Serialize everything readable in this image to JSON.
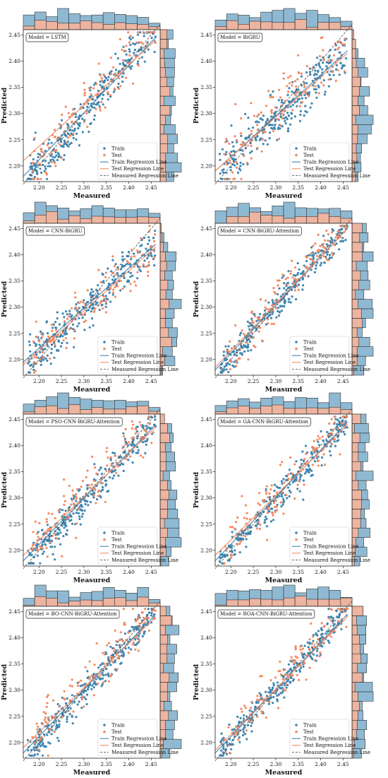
{
  "colors": {
    "train": "#3f86b0",
    "test": "#f58a63",
    "train_hist": "#8fb9d2",
    "test_hist": "#f7b49a",
    "train_line": "#3f86b0",
    "test_line": "#f58a63",
    "measured_line": "#555555"
  },
  "chart_data": [
    {
      "type": "scatter",
      "model_label": "Model = LSTM",
      "xlabel": "Measured",
      "ylabel": "Predicted",
      "xlim": [
        2.165,
        2.47
      ],
      "ylim": [
        2.17,
        2.46
      ],
      "xticks": [
        "2.20",
        "2.25",
        "2.30",
        "2.35",
        "2.40",
        "2.45"
      ],
      "yticks": [
        "2.20",
        "2.25",
        "2.30",
        "2.35",
        "2.40",
        "2.45"
      ],
      "legend": [
        "Train",
        "Test",
        "Train Regression Line",
        "Test Regression Line",
        "Measured Regression Line"
      ],
      "legend_position": "lower-right",
      "series": [
        {
          "name": "Train",
          "kind": "scatter",
          "slope": 1.0,
          "intercept": 0.0,
          "spread": 0.02,
          "seed": 11
        },
        {
          "name": "Test",
          "kind": "scatter",
          "slope": 0.98,
          "intercept": 0.05,
          "spread": 0.03,
          "seed": 12
        },
        {
          "name": "Train Regression Line",
          "kind": "line",
          "x": [
            2.165,
            2.46
          ],
          "y": [
            2.18,
            2.445
          ]
        },
        {
          "name": "Test Regression Line",
          "kind": "line",
          "x": [
            2.165,
            2.46
          ],
          "y": [
            2.21,
            2.44
          ]
        },
        {
          "name": "Measured Regression Line",
          "kind": "line",
          "x": [
            2.165,
            2.47
          ],
          "y": [
            2.165,
            2.47
          ]
        }
      ]
    },
    {
      "type": "scatter",
      "model_label": "Model = BiGRU",
      "xlabel": "Measured",
      "ylabel": "Predicted",
      "xlim": [
        2.165,
        2.47
      ],
      "ylim": [
        2.17,
        2.46
      ],
      "xticks": [
        "2.20",
        "2.25",
        "2.30",
        "2.35",
        "2.40",
        "2.45"
      ],
      "yticks": [
        "2.20",
        "2.25",
        "2.30",
        "2.35",
        "2.40",
        "2.45"
      ],
      "legend": [
        "Train",
        "Test",
        "Train Regression Line",
        "Test Regression Line",
        "Measured Regression Line"
      ],
      "legend_position": "lower-right",
      "series": [
        {
          "name": "Train",
          "kind": "scatter",
          "slope": 0.8,
          "intercept": 0.45,
          "spread": 0.022,
          "seed": 21
        },
        {
          "name": "Test",
          "kind": "scatter",
          "slope": 0.8,
          "intercept": 0.46,
          "spread": 0.028,
          "seed": 22
        },
        {
          "name": "Train Regression Line",
          "kind": "line",
          "x": [
            2.165,
            2.46
          ],
          "y": [
            2.19,
            2.42
          ]
        },
        {
          "name": "Test Regression Line",
          "kind": "line",
          "x": [
            2.165,
            2.46
          ],
          "y": [
            2.19,
            2.415
          ]
        },
        {
          "name": "Measured Regression Line",
          "kind": "line",
          "x": [
            2.165,
            2.47
          ],
          "y": [
            2.165,
            2.47
          ]
        }
      ]
    },
    {
      "type": "scatter",
      "model_label": "Model = CNN-BiGRU",
      "xlabel": "Measured",
      "ylabel": "Predicted",
      "xlim": [
        2.165,
        2.47
      ],
      "ylim": [
        2.17,
        2.46
      ],
      "xticks": [
        "2.20",
        "2.25",
        "2.30",
        "2.35",
        "2.40",
        "2.45"
      ],
      "yticks": [
        "2.20",
        "2.25",
        "2.30",
        "2.35",
        "2.40",
        "2.45"
      ],
      "legend": [
        "Train",
        "Test",
        "Train Regression Line",
        "Test Regression Line",
        "Measured Regression Line"
      ],
      "legend_position": "lower-right",
      "series": [
        {
          "name": "Train",
          "kind": "scatter",
          "slope": 0.78,
          "intercept": 0.5,
          "spread": 0.02,
          "seed": 31
        },
        {
          "name": "Test",
          "kind": "scatter",
          "slope": 0.78,
          "intercept": 0.5,
          "spread": 0.026,
          "seed": 32
        },
        {
          "name": "Train Regression Line",
          "kind": "line",
          "x": [
            2.165,
            2.46
          ],
          "y": [
            2.195,
            2.42
          ]
        },
        {
          "name": "Test Regression Line",
          "kind": "line",
          "x": [
            2.165,
            2.46
          ],
          "y": [
            2.19,
            2.415
          ]
        },
        {
          "name": "Measured Regression Line",
          "kind": "line",
          "x": [
            2.165,
            2.47
          ],
          "y": [
            2.165,
            2.47
          ]
        }
      ]
    },
    {
      "type": "scatter",
      "model_label": "Model = CNN-BiGRU-Attention",
      "xlabel": "Measured",
      "ylabel": "Predicted",
      "xlim": [
        2.165,
        2.47
      ],
      "ylim": [
        2.17,
        2.46
      ],
      "xticks": [
        "2.20",
        "2.25",
        "2.30",
        "2.35",
        "2.40",
        "2.45"
      ],
      "yticks": [
        "2.20",
        "2.25",
        "2.30",
        "2.35",
        "2.40",
        "2.45"
      ],
      "legend": [
        "Train",
        "Test",
        "Train Regression Line",
        "Test Regression Line",
        "Measured Regression Line"
      ],
      "legend_position": "lower-right",
      "series": [
        {
          "name": "Train",
          "kind": "scatter",
          "slope": 0.97,
          "intercept": 0.07,
          "spread": 0.016,
          "seed": 41
        },
        {
          "name": "Test",
          "kind": "scatter",
          "slope": 0.97,
          "intercept": 0.08,
          "spread": 0.022,
          "seed": 42
        },
        {
          "name": "Train Regression Line",
          "kind": "line",
          "x": [
            2.165,
            2.46
          ],
          "y": [
            2.18,
            2.45
          ]
        },
        {
          "name": "Test Regression Line",
          "kind": "line",
          "x": [
            2.165,
            2.46
          ],
          "y": [
            2.185,
            2.45
          ]
        },
        {
          "name": "Measured Regression Line",
          "kind": "line",
          "x": [
            2.165,
            2.47
          ],
          "y": [
            2.165,
            2.47
          ]
        }
      ]
    },
    {
      "type": "scatter",
      "model_label": "Model = PSO-CNN-BiGRU-Attention",
      "xlabel": "Measured",
      "ylabel": "Predicted",
      "xlim": [
        2.165,
        2.47
      ],
      "ylim": [
        2.17,
        2.46
      ],
      "xticks": [
        "2.20",
        "2.25",
        "2.30",
        "2.35",
        "2.40",
        "2.45"
      ],
      "yticks": [
        "2.20",
        "2.25",
        "2.30",
        "2.35",
        "2.40",
        "2.45"
      ],
      "legend": [
        "Train",
        "Test",
        "Train Regression Line",
        "Test Regression Line",
        "Measured Regression Line"
      ],
      "legend_position": "lower-right",
      "series": [
        {
          "name": "Train",
          "kind": "scatter",
          "slope": 0.95,
          "intercept": 0.11,
          "spread": 0.016,
          "seed": 51
        },
        {
          "name": "Test",
          "kind": "scatter",
          "slope": 0.9,
          "intercept": 0.24,
          "spread": 0.024,
          "seed": 52
        },
        {
          "name": "Train Regression Line",
          "kind": "line",
          "x": [
            2.165,
            2.46
          ],
          "y": [
            2.18,
            2.44
          ]
        },
        {
          "name": "Test Regression Line",
          "kind": "line",
          "x": [
            2.165,
            2.46
          ],
          "y": [
            2.19,
            2.435
          ]
        },
        {
          "name": "Measured Regression Line",
          "kind": "line",
          "x": [
            2.165,
            2.47
          ],
          "y": [
            2.165,
            2.47
          ]
        }
      ]
    },
    {
      "type": "scatter",
      "model_label": "Model = GA-CNN-BiGRU-Attention",
      "xlabel": "Measured",
      "ylabel": "Predicted",
      "xlim": [
        2.165,
        2.47
      ],
      "ylim": [
        2.17,
        2.46
      ],
      "xticks": [
        "2.20",
        "2.25",
        "2.30",
        "2.35",
        "2.40",
        "2.45"
      ],
      "yticks": [
        "2.20",
        "2.25",
        "2.30",
        "2.35",
        "2.40",
        "2.45"
      ],
      "legend": [
        "Train",
        "Test",
        "Train Regression Line",
        "Test Regression Line",
        "Measured Regression Line"
      ],
      "legend_position": "lower-right",
      "series": [
        {
          "name": "Train",
          "kind": "scatter",
          "slope": 0.96,
          "intercept": 0.09,
          "spread": 0.015,
          "seed": 61
        },
        {
          "name": "Test",
          "kind": "scatter",
          "slope": 0.92,
          "intercept": 0.19,
          "spread": 0.022,
          "seed": 62
        },
        {
          "name": "Train Regression Line",
          "kind": "line",
          "x": [
            2.165,
            2.46
          ],
          "y": [
            2.18,
            2.445
          ]
        },
        {
          "name": "Test Regression Line",
          "kind": "line",
          "x": [
            2.165,
            2.46
          ],
          "y": [
            2.19,
            2.44
          ]
        },
        {
          "name": "Measured Regression Line",
          "kind": "line",
          "x": [
            2.165,
            2.47
          ],
          "y": [
            2.165,
            2.47
          ]
        }
      ]
    },
    {
      "type": "scatter",
      "model_label": "Model = BO-CNN-BiGRU-Attention",
      "xlabel": "Measured",
      "ylabel": "Predicted",
      "xlim": [
        2.165,
        2.47
      ],
      "ylim": [
        2.17,
        2.46
      ],
      "xticks": [
        "2.20",
        "2.25",
        "2.30",
        "2.35",
        "2.40",
        "2.45"
      ],
      "yticks": [
        "2.20",
        "2.25",
        "2.30",
        "2.35",
        "2.40",
        "2.45"
      ],
      "legend": [
        "Train",
        "Test",
        "Train Regression Line",
        "Test Regression Line",
        "Measured Regression Line"
      ],
      "legend_position": "lower-right",
      "series": [
        {
          "name": "Train",
          "kind": "scatter",
          "slope": 0.96,
          "intercept": 0.09,
          "spread": 0.015,
          "seed": 71
        },
        {
          "name": "Test",
          "kind": "scatter",
          "slope": 0.9,
          "intercept": 0.24,
          "spread": 0.022,
          "seed": 72
        },
        {
          "name": "Train Regression Line",
          "kind": "line",
          "x": [
            2.165,
            2.46
          ],
          "y": [
            2.18,
            2.445
          ]
        },
        {
          "name": "Test Regression Line",
          "kind": "line",
          "x": [
            2.165,
            2.46
          ],
          "y": [
            2.19,
            2.44
          ]
        },
        {
          "name": "Measured Regression Line",
          "kind": "line",
          "x": [
            2.165,
            2.47
          ],
          "y": [
            2.165,
            2.47
          ]
        }
      ]
    },
    {
      "type": "scatter",
      "model_label": "Model = ROA-CNN-BiGRU-Attention",
      "xlabel": "Measured",
      "ylabel": "Predicted",
      "xlim": [
        2.165,
        2.47
      ],
      "ylim": [
        2.17,
        2.46
      ],
      "xticks": [
        "2.20",
        "2.25",
        "2.30",
        "2.35",
        "2.40",
        "2.45"
      ],
      "yticks": [
        "2.20",
        "2.25",
        "2.30",
        "2.35",
        "2.40",
        "2.45"
      ],
      "legend": [
        "Train",
        "Test",
        "Train Regression Line",
        "Test Regression Line",
        "Measured Regression Line"
      ],
      "legend_position": "lower-right",
      "series": [
        {
          "name": "Train",
          "kind": "scatter",
          "slope": 0.97,
          "intercept": 0.07,
          "spread": 0.014,
          "seed": 81
        },
        {
          "name": "Test",
          "kind": "scatter",
          "slope": 0.95,
          "intercept": 0.12,
          "spread": 0.02,
          "seed": 82
        },
        {
          "name": "Train Regression Line",
          "kind": "line",
          "x": [
            2.165,
            2.46
          ],
          "y": [
            2.18,
            2.445
          ]
        },
        {
          "name": "Test Regression Line",
          "kind": "line",
          "x": [
            2.165,
            2.46
          ],
          "y": [
            2.185,
            2.44
          ]
        },
        {
          "name": "Measured Regression Line",
          "kind": "line",
          "x": [
            2.165,
            2.47
          ],
          "y": [
            2.165,
            2.47
          ]
        }
      ]
    }
  ]
}
